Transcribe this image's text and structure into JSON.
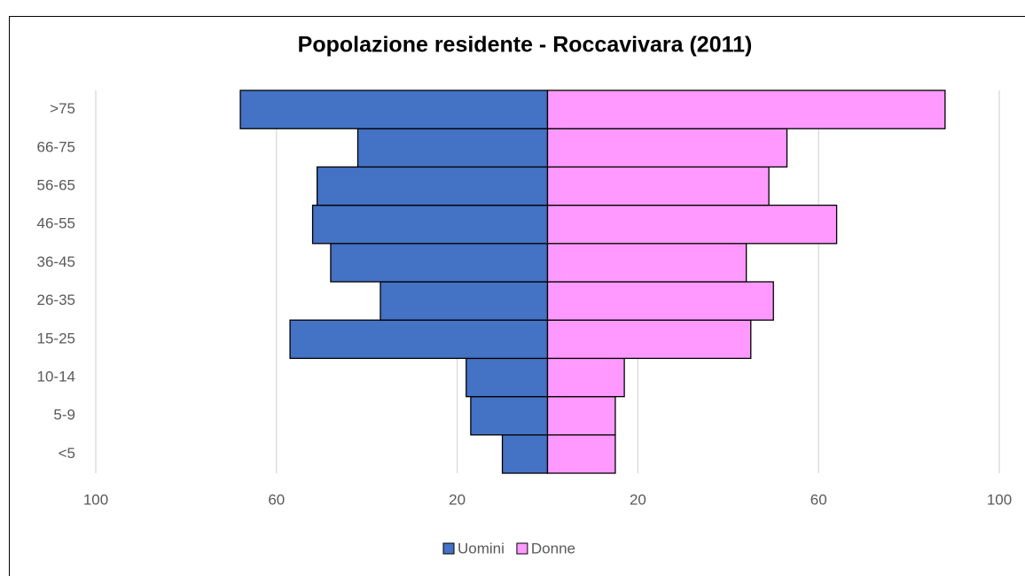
{
  "chart_data": {
    "type": "pyramid",
    "title": "Popolazione residente - Roccavivara (2011)",
    "categories": [
      "<5",
      "5-9",
      "10-14",
      "15-25",
      "26-35",
      "36-45",
      "46-55",
      "56-65",
      "66-75",
      ">75"
    ],
    "series": [
      {
        "name": "Uomini",
        "color": "#4472c4",
        "values": [
          -10,
          -17,
          -18,
          -57,
          -37,
          -48,
          -52,
          -51,
          -42,
          -68
        ]
      },
      {
        "name": "Donne",
        "color": "#ff99ff",
        "values": [
          15,
          15,
          17,
          45,
          50,
          44,
          64,
          49,
          53,
          88
        ]
      }
    ],
    "xlim": [
      -100,
      100
    ],
    "xticks": [
      {
        "value": -100,
        "label": "100"
      },
      {
        "value": -60,
        "label": "60"
      },
      {
        "value": -20,
        "label": "20"
      },
      20,
      60,
      100
    ],
    "grid": true,
    "legend": "bottom"
  }
}
